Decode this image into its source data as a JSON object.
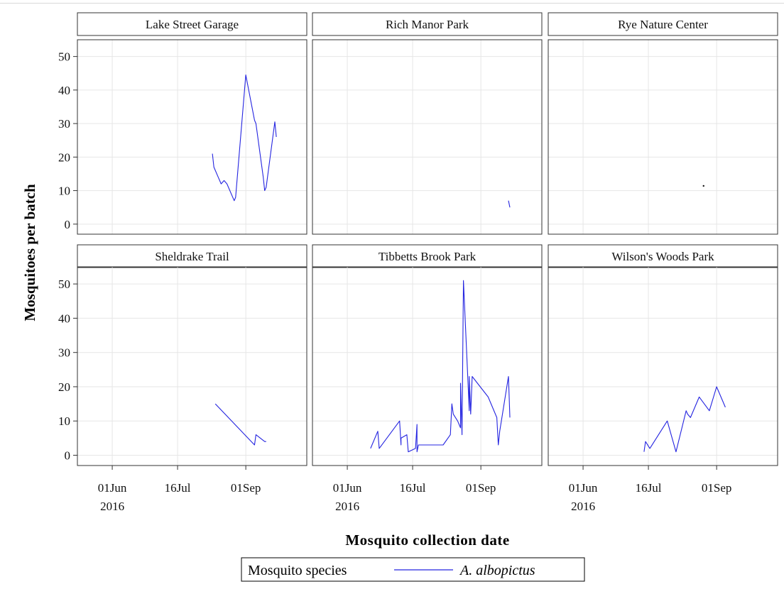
{
  "chart_data": {
    "type": "line",
    "title": "",
    "xlabel": "Mosquito collection date",
    "ylabel": "Mosquitoes per batch",
    "ylim": [
      -3,
      55
    ],
    "xlim": [
      "2016-05-08",
      "2016-10-13"
    ],
    "yticks": [
      0,
      10,
      20,
      30,
      40,
      50
    ],
    "xticks": [
      {
        "date": "2016-06-01",
        "label": "01Jun",
        "sublabel": "2016"
      },
      {
        "date": "2016-07-16",
        "label": "16Jul",
        "sublabel": ""
      },
      {
        "date": "2016-09-01",
        "label": "01Sep",
        "sublabel": ""
      }
    ],
    "grid": true,
    "legend_title": "Mosquito species",
    "legend_placement": "bottom",
    "series_color": "#2424e0",
    "series_name": "A. albopictus",
    "panels": [
      {
        "name": "Lake Street Garage",
        "points": [
          [
            "2016-08-09",
            21
          ],
          [
            "2016-08-10",
            17
          ],
          [
            "2016-08-13",
            14
          ],
          [
            "2016-08-15",
            12
          ],
          [
            "2016-08-17",
            13
          ],
          [
            "2016-08-19",
            12
          ],
          [
            "2016-08-24",
            7
          ],
          [
            "2016-08-25",
            8
          ],
          [
            "2016-09-01",
            44.5
          ],
          [
            "2016-09-07",
            31
          ],
          [
            "2016-09-08",
            30
          ],
          [
            "2016-09-13",
            14
          ],
          [
            "2016-09-14",
            10
          ],
          [
            "2016-09-15",
            11
          ],
          [
            "2016-09-21",
            30.5
          ],
          [
            "2016-09-22",
            26
          ]
        ]
      },
      {
        "name": "Rich Manor Park",
        "points": [
          [
            "2016-09-20",
            7
          ],
          [
            "2016-09-21",
            5
          ]
        ]
      },
      {
        "name": "Rye Nature Center",
        "points": [
          [
            "2016-08-23",
            11.4
          ]
        ]
      },
      {
        "name": "Sheldrake Trail",
        "points": [
          [
            "2016-08-11",
            15
          ],
          [
            "2016-09-07",
            3
          ],
          [
            "2016-09-08",
            6
          ],
          [
            "2016-09-14",
            4
          ],
          [
            "2016-09-15",
            4
          ]
        ]
      },
      {
        "name": "Tibbetts Brook Park",
        "points": [
          [
            "2016-06-17",
            2
          ],
          [
            "2016-06-22",
            7
          ],
          [
            "2016-06-23",
            2
          ],
          [
            "2016-07-07",
            10
          ],
          [
            "2016-07-08",
            3
          ],
          [
            "2016-07-08",
            5
          ],
          [
            "2016-07-12",
            6
          ],
          [
            "2016-07-13",
            1
          ],
          [
            "2016-07-18",
            2
          ],
          [
            "2016-07-19",
            9
          ],
          [
            "2016-07-19",
            1
          ],
          [
            "2016-07-20",
            3
          ],
          [
            "2016-08-06",
            3
          ],
          [
            "2016-08-11",
            6
          ],
          [
            "2016-08-12",
            15
          ],
          [
            "2016-08-13",
            12
          ],
          [
            "2016-08-16",
            10
          ],
          [
            "2016-08-18",
            8
          ],
          [
            "2016-08-18",
            21
          ],
          [
            "2016-08-19",
            6
          ],
          [
            "2016-08-20",
            51
          ],
          [
            "2016-08-24",
            13
          ],
          [
            "2016-08-24",
            23
          ],
          [
            "2016-08-25",
            12
          ],
          [
            "2016-08-26",
            23
          ],
          [
            "2016-09-06",
            17
          ],
          [
            "2016-09-12",
            11
          ],
          [
            "2016-09-13",
            3
          ],
          [
            "2016-09-14",
            7
          ],
          [
            "2016-09-20",
            23
          ],
          [
            "2016-09-21",
            11
          ]
        ]
      },
      {
        "name": "Wilson's Woods Park",
        "points": [
          [
            "2016-07-13",
            1
          ],
          [
            "2016-07-14",
            4
          ],
          [
            "2016-07-17",
            2
          ],
          [
            "2016-07-29",
            10
          ],
          [
            "2016-08-04",
            1
          ],
          [
            "2016-08-11",
            13
          ],
          [
            "2016-08-12",
            12
          ],
          [
            "2016-08-14",
            11
          ],
          [
            "2016-08-20",
            17
          ],
          [
            "2016-08-27",
            13
          ],
          [
            "2016-09-01",
            20
          ],
          [
            "2016-09-07",
            14
          ]
        ]
      }
    ]
  }
}
